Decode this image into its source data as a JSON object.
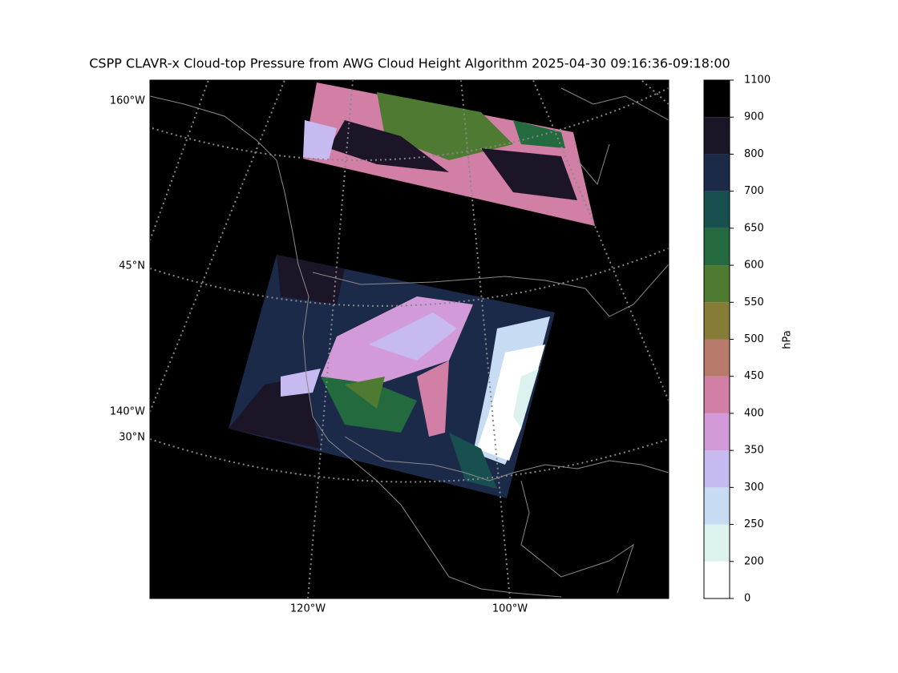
{
  "title": "CSPP CLAVR-x Cloud-top Pressure from AWG Cloud Height Algorithm 2025-04-30 09:16:36-09:18:00",
  "map": {
    "labels": [
      "160°W",
      "45°N",
      "140°W",
      "30°N",
      "120°W",
      "100°W"
    ]
  },
  "colorbar": {
    "label": "hPa",
    "ticks": [
      0,
      200,
      250,
      300,
      350,
      400,
      450,
      500,
      550,
      600,
      650,
      700,
      800,
      900,
      1100
    ],
    "colors": [
      "#ffffff",
      "#dcf2ee",
      "#c7dcf3",
      "#c6baf0",
      "#d29ad8",
      "#d27fa6",
      "#b87a6a",
      "#877b38",
      "#4e7a32",
      "#236b3f",
      "#184f4f",
      "#1c2a4a",
      "#1c1427",
      "#000000"
    ]
  }
}
